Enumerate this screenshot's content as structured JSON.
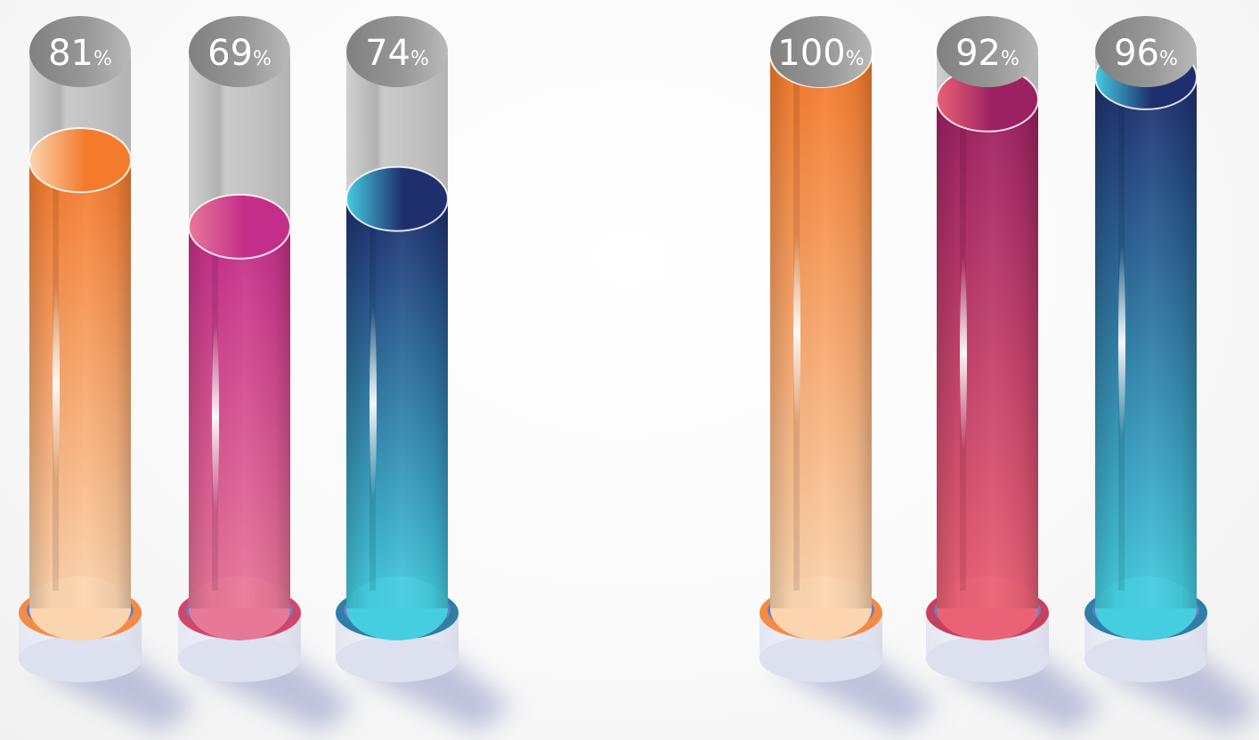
{
  "chart_data": {
    "type": "bar",
    "style": "3d-test-tube",
    "ylim": [
      0,
      100
    ],
    "unit": "%",
    "values": [
      81,
      69,
      74,
      100,
      92,
      96
    ],
    "labels": [
      "81",
      "69",
      "74",
      "100",
      "92",
      "96"
    ],
    "colors": [
      {
        "top": "#f47a2c",
        "bottom": "#fbd5b0",
        "rim": "#f58a45"
      },
      {
        "top": "#c42e8a",
        "bottom": "#e87898",
        "rim": "#d2456a"
      },
      {
        "top": "#1f2f6e",
        "bottom": "#45cde0",
        "rim": "#2f7ea8"
      },
      {
        "top": "#f47a2c",
        "bottom": "#fbd5b0",
        "rim": "#f58a45"
      },
      {
        "top": "#9c2162",
        "bottom": "#ea6275",
        "rim": "#c8405c"
      },
      {
        "top": "#1f2f6e",
        "bottom": "#45cde0",
        "rim": "#2f7ea8"
      }
    ]
  }
}
